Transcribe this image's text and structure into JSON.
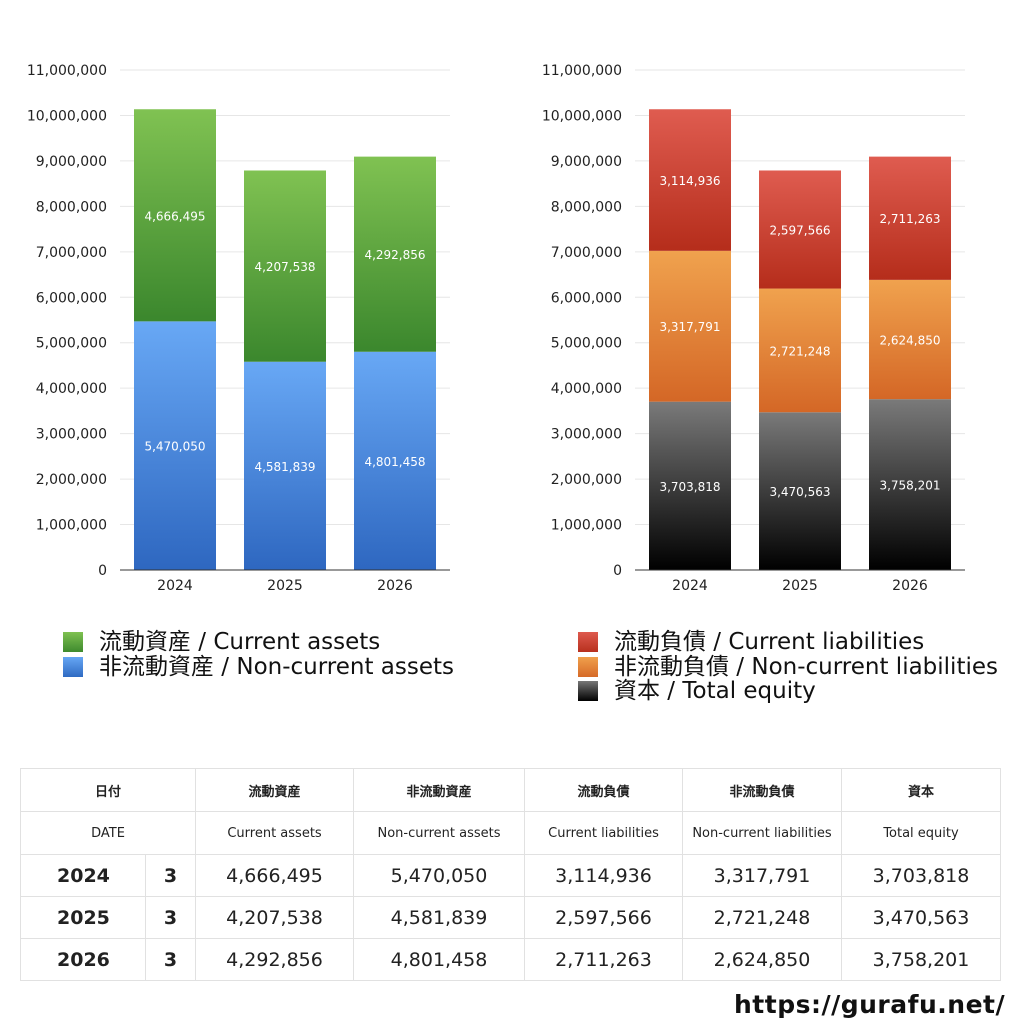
{
  "colors": {
    "current_assets": [
      "#80c252",
      "#3b872d"
    ],
    "non_current_assets": [
      "#68a8f5",
      "#2e67c0"
    ],
    "current_liabilities": [
      "#df5c50",
      "#b52d1b"
    ],
    "non_current_liabilities": [
      "#f0a24e",
      "#d46726"
    ],
    "total_equity": [
      "#7a7a7a",
      "#000000"
    ]
  },
  "chart_data": [
    {
      "type": "bar",
      "stacked": true,
      "categories": [
        "2024",
        "2025",
        "2026"
      ],
      "ylim": [
        0,
        11000000
      ],
      "y_ticks": [
        "0",
        "1,000,000",
        "2,000,000",
        "3,000,000",
        "4,000,000",
        "5,000,000",
        "6,000,000",
        "7,000,000",
        "8,000,000",
        "9,000,000",
        "10,000,000",
        "11,000,000"
      ],
      "grid": true,
      "series": [
        {
          "name": "非流動資産 / Non-current assets",
          "color_key": "non_current_assets",
          "values": [
            5470050,
            4581839,
            4801458
          ],
          "labels": [
            "5,470,050",
            "4,581,839",
            "4,801,458"
          ]
        },
        {
          "name": "流動資産 / Current assets",
          "color_key": "current_assets",
          "values": [
            4666495,
            4207538,
            4292856
          ],
          "labels": [
            "4,666,495",
            "4,207,538",
            "4,292,856"
          ]
        }
      ]
    },
    {
      "type": "bar",
      "stacked": true,
      "categories": [
        "2024",
        "2025",
        "2026"
      ],
      "ylim": [
        0,
        11000000
      ],
      "y_ticks": [
        "0",
        "1,000,000",
        "2,000,000",
        "3,000,000",
        "4,000,000",
        "5,000,000",
        "6,000,000",
        "7,000,000",
        "8,000,000",
        "9,000,000",
        "10,000,000",
        "11,000,000"
      ],
      "grid": true,
      "series": [
        {
          "name": "資本 / Total equity",
          "color_key": "total_equity",
          "values": [
            3703818,
            3470563,
            3758201
          ],
          "labels": [
            "3,703,818",
            "3,470,563",
            "3,758,201"
          ]
        },
        {
          "name": "非流動負債 / Non-current liabilities",
          "color_key": "non_current_liabilities",
          "values": [
            3317791,
            2721248,
            2624850
          ],
          "labels": [
            "3,317,791",
            "2,721,248",
            "2,624,850"
          ]
        },
        {
          "name": "流動負債 / Current liabilities",
          "color_key": "current_liabilities",
          "values": [
            3114936,
            2597566,
            2711263
          ],
          "labels": [
            "3,114,936",
            "2,597,566",
            "2,711,263"
          ]
        }
      ]
    }
  ],
  "legend_left": [
    {
      "label": "流動資産 / Current assets"
    },
    {
      "label": "非流動資産 / Non-current assets"
    }
  ],
  "legend_right": [
    {
      "label": "流動負債 / Current liabilities"
    },
    {
      "label": "非流動負債 / Non-current liabilities"
    },
    {
      "label": "資本 / Total equity"
    }
  ],
  "table": {
    "header_jp": [
      "日付",
      "流動資産",
      "非流動資産",
      "流動負債",
      "非流動負債",
      "資本"
    ],
    "header_en": [
      "DATE",
      "Current assets",
      "Non-current assets",
      "Current liabilities",
      "Non-current liabilities",
      "Total equity"
    ],
    "rows": [
      {
        "year": "2024",
        "count": "3",
        "cells": [
          "4,666,495",
          "5,470,050",
          "3,114,936",
          "3,317,791",
          "3,703,818"
        ]
      },
      {
        "year": "2025",
        "count": "3",
        "cells": [
          "4,207,538",
          "4,581,839",
          "2,597,566",
          "2,721,248",
          "3,470,563"
        ]
      },
      {
        "year": "2026",
        "count": "3",
        "cells": [
          "4,292,856",
          "4,801,458",
          "2,711,263",
          "2,624,850",
          "3,758,201"
        ]
      }
    ]
  },
  "site_url": "https://gurafu.net/"
}
